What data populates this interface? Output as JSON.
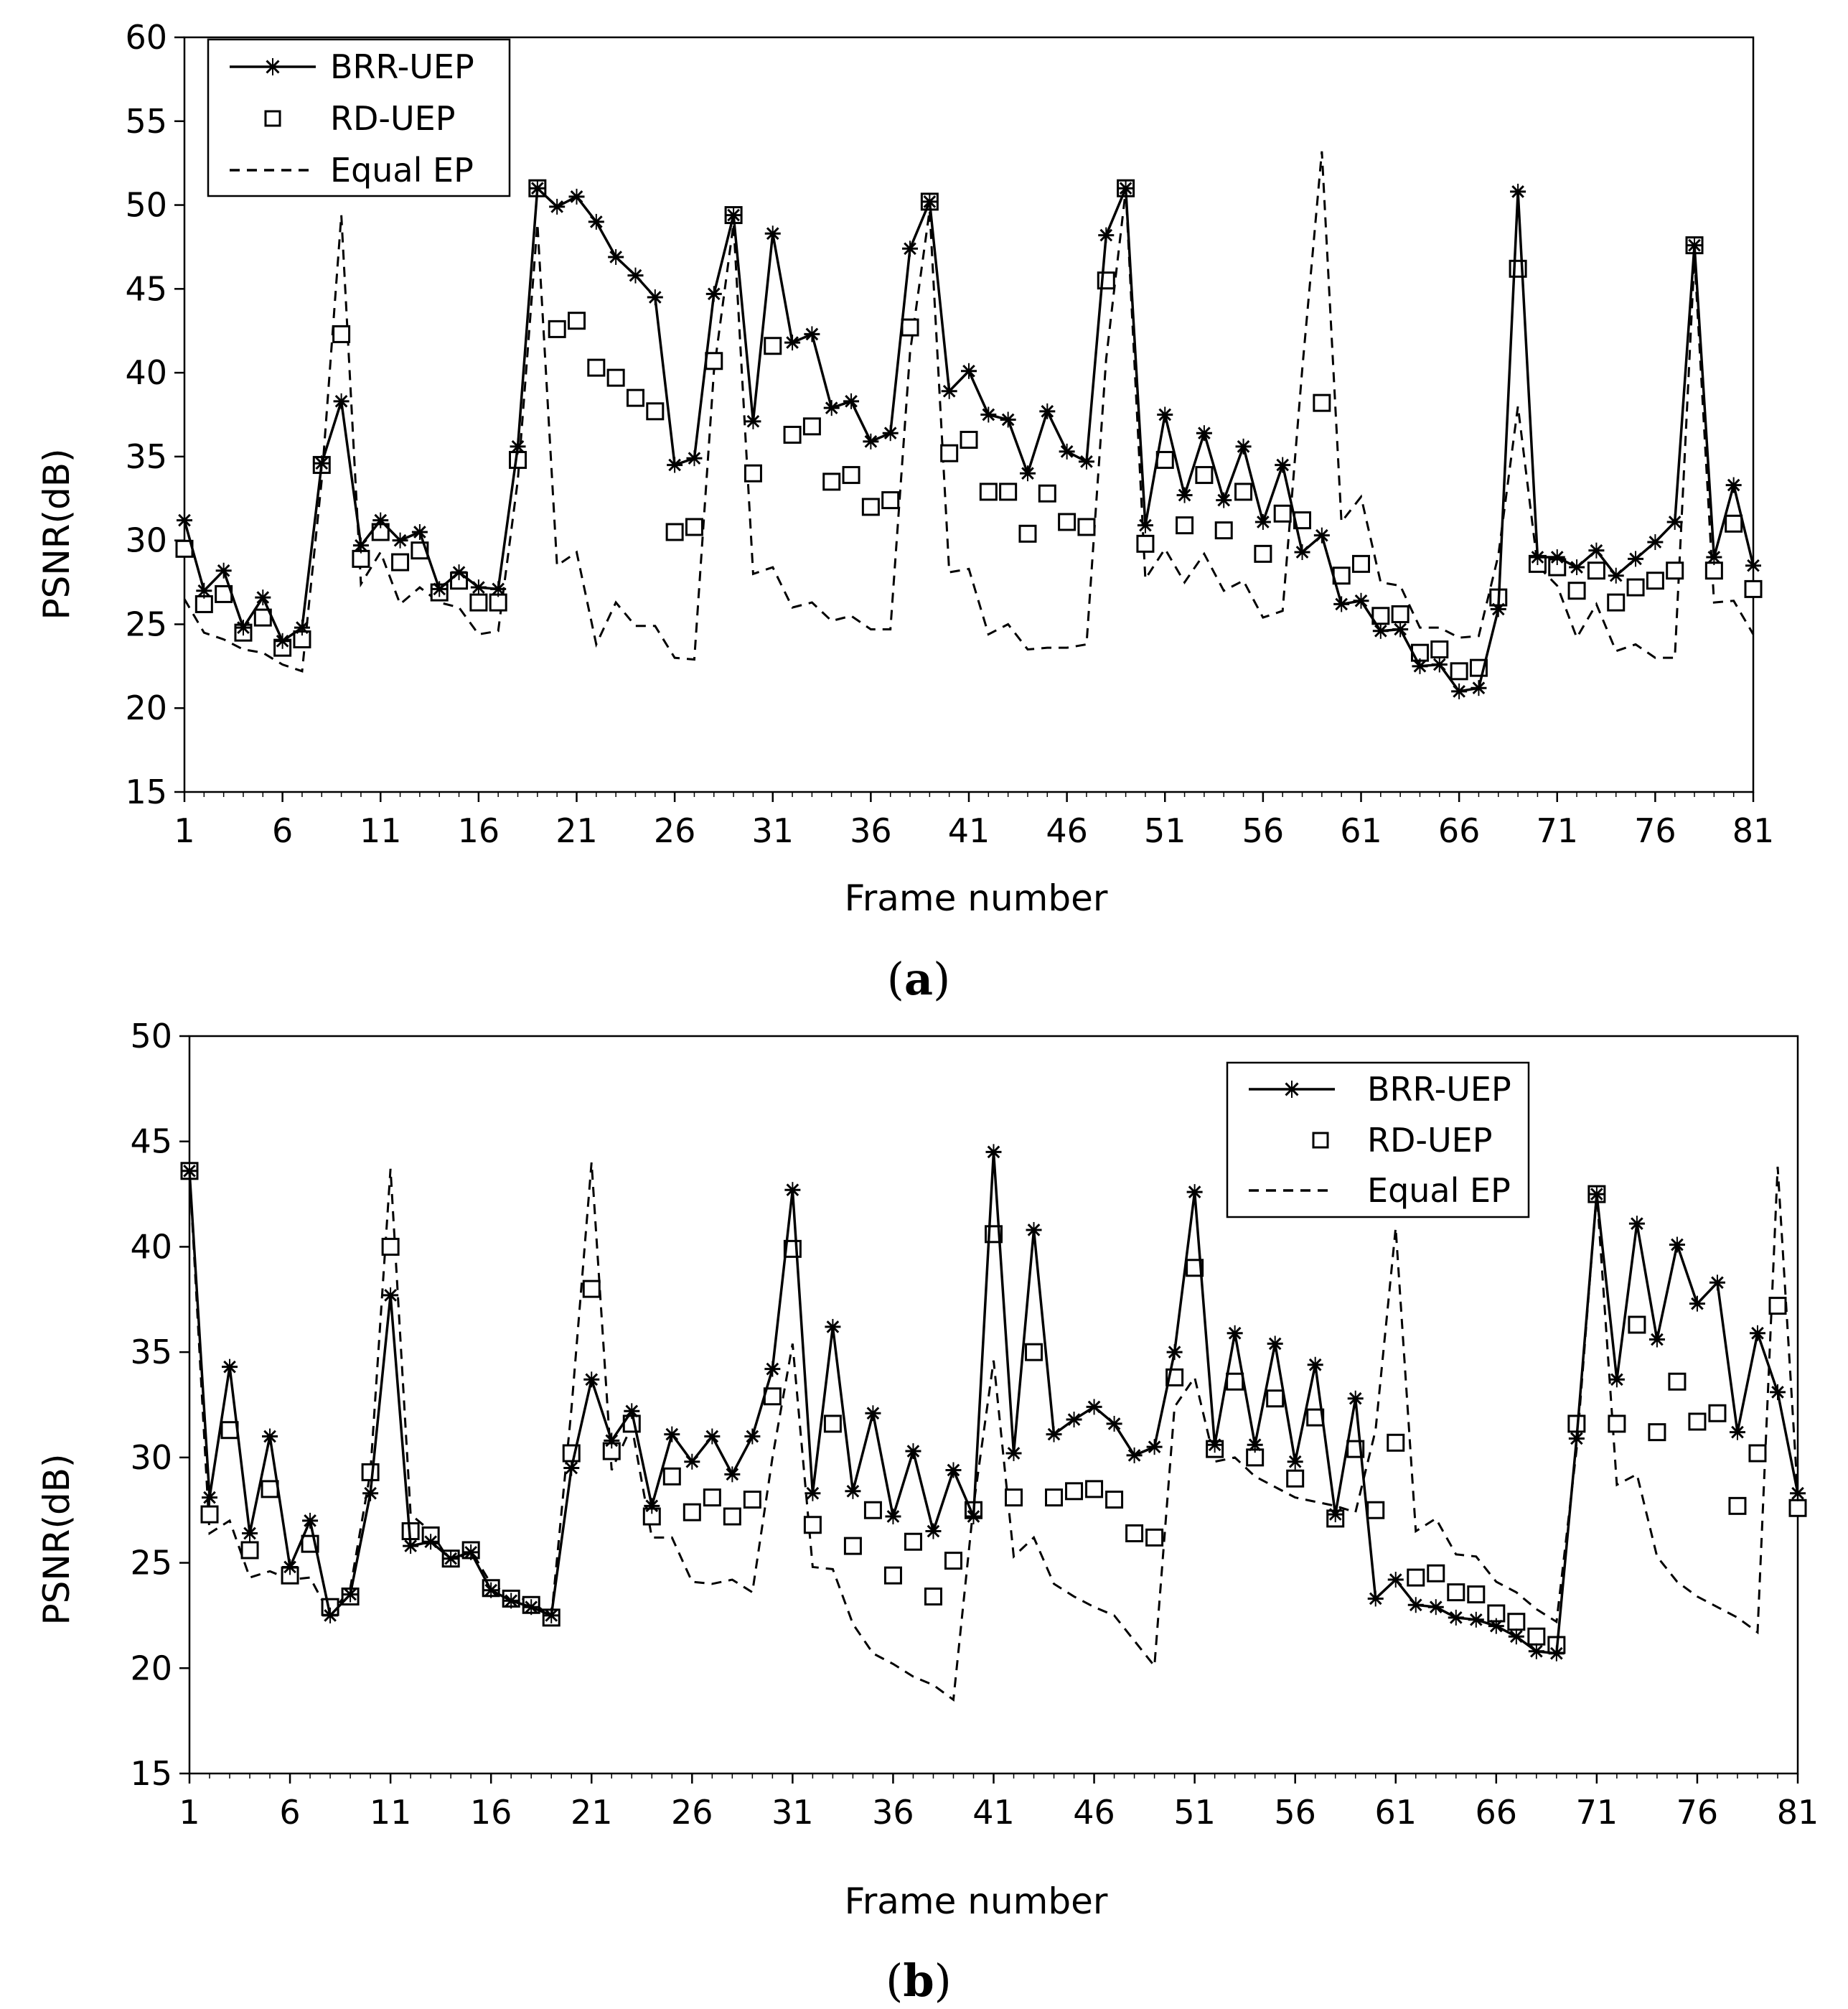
{
  "chart_data": [
    {
      "type": "line",
      "panel": "a",
      "caption_open": "(",
      "caption_letter": "a",
      "caption_close": ")",
      "title": "",
      "xlabel": "Frame number",
      "ylabel": "PSNR(dB)",
      "xlim": [
        1,
        81
      ],
      "ylim": [
        15,
        60
      ],
      "xticks": [
        1,
        6,
        11,
        16,
        21,
        26,
        31,
        36,
        41,
        46,
        51,
        56,
        61,
        66,
        71,
        76,
        81
      ],
      "yticks": [
        15,
        20,
        25,
        30,
        35,
        40,
        45,
        50,
        55,
        60
      ],
      "legend_position": "top-left",
      "series": [
        {
          "name": "BRR-UEP",
          "style": "solid-star",
          "values": [
            31.2,
            27.0,
            28.2,
            24.8,
            26.6,
            24.0,
            24.8,
            34.6,
            38.3,
            29.7,
            31.2,
            30.0,
            30.5,
            27.1,
            28.1,
            27.2,
            27.1,
            35.6,
            51.0,
            49.9,
            50.5,
            49.0,
            46.9,
            45.8,
            44.5,
            34.5,
            34.9,
            44.7,
            49.4,
            37.1,
            48.3,
            41.8,
            42.3,
            37.9,
            38.3,
            35.9,
            36.4,
            47.4,
            50.2,
            38.9,
            40.1,
            37.5,
            37.2,
            34.0,
            37.7,
            35.3,
            34.7,
            48.2,
            51.0,
            30.9,
            37.5,
            32.7,
            36.4,
            32.4,
            35.6,
            31.1,
            34.5,
            29.3,
            30.3,
            26.2,
            26.4,
            24.6,
            24.7,
            22.5,
            22.6,
            21.0,
            21.2,
            25.9,
            50.8,
            29.0,
            29.0,
            28.4,
            29.4,
            27.9,
            28.9,
            29.9,
            31.1,
            47.6,
            29.0,
            33.3,
            28.5
          ]
        },
        {
          "name": "RD-UEP",
          "style": "square-marker",
          "values": [
            29.5,
            26.2,
            26.8,
            24.5,
            25.4,
            23.6,
            24.1,
            34.5,
            42.3,
            28.9,
            30.5,
            28.7,
            29.4,
            26.9,
            27.6,
            26.3,
            26.3,
            34.8,
            51.0,
            42.6,
            43.1,
            40.3,
            39.7,
            38.5,
            37.7,
            30.5,
            30.8,
            40.7,
            49.4,
            34.0,
            41.6,
            36.3,
            36.8,
            33.5,
            33.9,
            32.0,
            32.4,
            42.7,
            50.2,
            35.2,
            36.0,
            32.9,
            32.9,
            30.4,
            32.8,
            31.1,
            30.8,
            45.5,
            51.0,
            29.8,
            34.8,
            30.9,
            33.9,
            30.6,
            32.9,
            29.2,
            31.6,
            31.2,
            38.2,
            27.9,
            28.6,
            25.5,
            25.6,
            23.3,
            23.5,
            22.2,
            22.4,
            26.6,
            46.2,
            28.6,
            28.4,
            27.0,
            28.2,
            26.3,
            27.2,
            27.6,
            28.2,
            47.6,
            28.2,
            31.0,
            27.1
          ]
        },
        {
          "name": "Equal EP",
          "style": "dashed",
          "values": [
            26.5,
            24.5,
            24.1,
            23.5,
            23.3,
            22.6,
            22.2,
            33.6,
            49.4,
            27.4,
            29.3,
            26.2,
            27.2,
            26.3,
            26.0,
            24.4,
            24.6,
            33.6,
            48.9,
            28.5,
            29.3,
            23.8,
            26.3,
            24.9,
            24.9,
            23.0,
            22.9,
            40.1,
            48.9,
            28.0,
            28.4,
            26.0,
            26.3,
            25.2,
            25.5,
            24.7,
            24.7,
            41.2,
            49.7,
            28.1,
            28.3,
            24.4,
            25.0,
            23.5,
            23.6,
            23.6,
            23.8,
            40.8,
            50.9,
            27.7,
            29.5,
            27.5,
            29.2,
            27.0,
            27.6,
            25.4,
            25.8,
            40.2,
            53.2,
            31.1,
            32.6,
            27.5,
            27.3,
            24.8,
            24.8,
            24.2,
            24.3,
            29.1,
            38.0,
            28.5,
            27.3,
            24.2,
            26.2,
            23.4,
            23.8,
            23.0,
            23.0,
            46.9,
            26.3,
            26.4,
            24.4
          ]
        }
      ]
    },
    {
      "type": "line",
      "panel": "b",
      "caption_open": "(",
      "caption_letter": "b",
      "caption_close": ")",
      "title": "",
      "xlabel": "Frame number",
      "ylabel": "PSNR(dB)",
      "xlim": [
        1,
        81
      ],
      "ylim": [
        15,
        50
      ],
      "xticks": [
        1,
        6,
        11,
        16,
        21,
        26,
        31,
        36,
        41,
        46,
        51,
        56,
        61,
        66,
        71,
        76,
        81
      ],
      "yticks": [
        15,
        20,
        25,
        30,
        35,
        40,
        45,
        50
      ],
      "legend_position": "top-right",
      "series": [
        {
          "name": "BRR-UEP",
          "style": "solid-star",
          "values": [
            43.6,
            28.1,
            34.3,
            26.4,
            31.0,
            24.8,
            27.0,
            22.5,
            23.5,
            28.3,
            37.7,
            25.8,
            26.0,
            25.2,
            25.5,
            23.7,
            23.2,
            22.9,
            22.5,
            29.5,
            33.7,
            30.8,
            32.2,
            27.7,
            31.1,
            29.8,
            31.0,
            29.2,
            31.0,
            34.2,
            42.7,
            28.3,
            36.2,
            28.4,
            32.1,
            27.2,
            30.3,
            26.5,
            29.4,
            27.2,
            44.5,
            30.2,
            40.8,
            31.1,
            31.8,
            32.4,
            31.6,
            30.1,
            30.5,
            35.0,
            42.6,
            30.6,
            35.9,
            30.6,
            35.4,
            29.8,
            34.4,
            27.3,
            32.8,
            23.3,
            24.2,
            23.0,
            22.9,
            22.4,
            22.3,
            22.0,
            21.5,
            20.8,
            20.7,
            30.9,
            42.5,
            33.7,
            41.1,
            35.6,
            40.1,
            37.3,
            38.3,
            31.2,
            35.9,
            33.1,
            28.3
          ]
        },
        {
          "name": "RD-UEP",
          "style": "square-marker",
          "values": [
            43.6,
            27.3,
            31.3,
            25.6,
            28.5,
            24.4,
            25.9,
            22.9,
            23.4,
            29.3,
            40.0,
            26.5,
            26.3,
            25.2,
            25.6,
            23.8,
            23.3,
            23.0,
            22.4,
            30.2,
            38.0,
            30.3,
            31.6,
            27.2,
            29.1,
            27.4,
            28.1,
            27.2,
            28.0,
            32.9,
            39.9,
            26.8,
            31.6,
            25.8,
            27.5,
            24.4,
            26.0,
            23.4,
            25.1,
            27.5,
            40.6,
            28.1,
            35.0,
            28.1,
            28.4,
            28.5,
            28.0,
            26.4,
            26.2,
            33.8,
            39.0,
            30.4,
            33.6,
            30.0,
            32.8,
            29.0,
            31.9,
            27.1,
            30.4,
            27.5,
            30.7,
            24.3,
            24.5,
            23.6,
            23.5,
            22.6,
            22.2,
            21.5,
            21.1,
            31.6,
            42.5,
            31.6,
            36.3,
            31.2,
            33.6,
            31.7,
            32.1,
            27.7,
            30.2,
            37.2,
            27.6
          ]
        },
        {
          "name": "Equal EP",
          "style": "dashed",
          "values": [
            43.6,
            26.4,
            27.0,
            24.3,
            24.6,
            24.2,
            24.3,
            22.5,
            23.8,
            29.3,
            43.7,
            27.3,
            26.5,
            25.0,
            25.6,
            24.0,
            23.4,
            23.2,
            22.4,
            32.3,
            44.0,
            29.4,
            31.5,
            26.2,
            26.2,
            24.1,
            24.0,
            24.2,
            23.6,
            30.0,
            35.4,
            24.8,
            24.7,
            22.1,
            20.7,
            20.2,
            19.6,
            19.2,
            18.5,
            27.7,
            34.6,
            25.3,
            26.2,
            24.0,
            23.4,
            22.9,
            22.5,
            21.3,
            20.1,
            32.4,
            33.8,
            29.8,
            30.0,
            29.1,
            28.6,
            28.1,
            27.9,
            27.7,
            27.4,
            31.3,
            40.9,
            26.5,
            27.1,
            25.4,
            25.3,
            24.1,
            23.6,
            22.8,
            22.2,
            30.4,
            42.6,
            28.7,
            29.2,
            25.3,
            24.1,
            23.4,
            22.9,
            22.4,
            21.7,
            43.8,
            28.2
          ]
        }
      ]
    }
  ]
}
